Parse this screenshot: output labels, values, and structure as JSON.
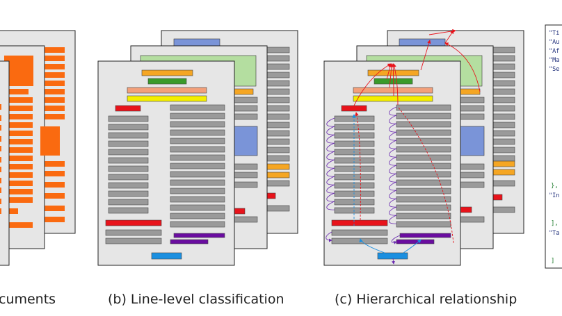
{
  "captions": {
    "a": "cuments",
    "b": "(b) Line-level classification",
    "c": "(c) Hierarchical relationship"
  },
  "json_panel": {
    "keys": [
      "\"Ti",
      "\"Au",
      "\"Af",
      "\"Ma",
      "\"Se"
    ],
    "keys2": [
      "\"In",
      "\"Ta"
    ],
    "braces": [
      "},",
      "],",
      "]"
    ]
  },
  "colors": {
    "page_fill": "#e6e6e6",
    "page_border": "#222222",
    "line_gray": "#9a9a9a",
    "title_orange": "#f5a623",
    "author_green": "#3a9a2a",
    "affil_salmon": "#f3a07a",
    "mail_yellow": "#f4ee00",
    "section_red": "#e8131b",
    "caption_purple": "#6a0da0",
    "figure_blue": "#1a8fe0",
    "figure_lightblue": "#7a94d8",
    "figure_lightgreen": "#b4dea0",
    "raw_orange": "#fa6a10",
    "arrow_red": "#e8131b",
    "arrow_blue": "#1a8fe0",
    "arrow_purple": "#6a2ab0"
  }
}
